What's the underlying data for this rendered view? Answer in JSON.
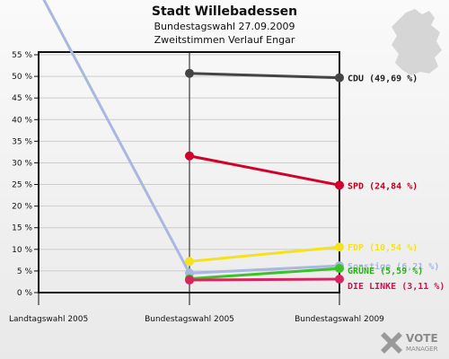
{
  "chart_data": {
    "type": "line",
    "title": "Stadt Willebadessen",
    "subtitle": "Bundestagswahl 27.09.2009",
    "subtitle2": "Zweitstimmen Verlauf Engar",
    "categories": [
      "Landtagswahl 2005",
      "Bundestagswahl 2005",
      "Bundestagswahl 2009"
    ],
    "ylim": [
      0,
      55
    ],
    "yticks": [
      "0 %",
      "5 %",
      "10 %",
      "15 %",
      "20 %",
      "25 %",
      "30 %",
      "35 %",
      "40 %",
      "45 %",
      "50 %",
      "55 %"
    ],
    "series": [
      {
        "name": "Sonstige",
        "label": "Sonstige (6,21 %)",
        "color": "#a8b8e0",
        "label_color": "#a8b8e0",
        "values": [
          70,
          4.5,
          6.21
        ]
      },
      {
        "name": "CDU",
        "label": "CDU (49,69 %)",
        "color": "#444444",
        "label_color": "#222222",
        "values": [
          null,
          50.7,
          49.69
        ]
      },
      {
        "name": "SPD",
        "label": "SPD (24,84 %)",
        "color": "#d2002a",
        "label_color": "#c0001f",
        "values": [
          null,
          31.6,
          24.84
        ]
      },
      {
        "name": "FDP",
        "label": "FDP (10,54 %)",
        "color": "#f5e11e",
        "label_color": "#f5e11e",
        "values": [
          null,
          7.2,
          10.54
        ]
      },
      {
        "name": "GRÜNE",
        "label": "GRÜNE (5,59 %)",
        "color": "#3cc228",
        "label_color": "#2fae1e",
        "values": [
          null,
          3.2,
          5.59
        ]
      },
      {
        "name": "DIE LINKE",
        "label": "DIE LINKE (3,11 %)",
        "color": "#d8245f",
        "label_color": "#c21a50",
        "values": [
          null,
          2.9,
          3.11
        ]
      }
    ]
  },
  "logo": {
    "text_top": "VOTE",
    "text_bottom": "MANAGER"
  },
  "colors": {
    "frame": "#111111",
    "grid": "#cccccc",
    "map": "#d6d6d6"
  }
}
